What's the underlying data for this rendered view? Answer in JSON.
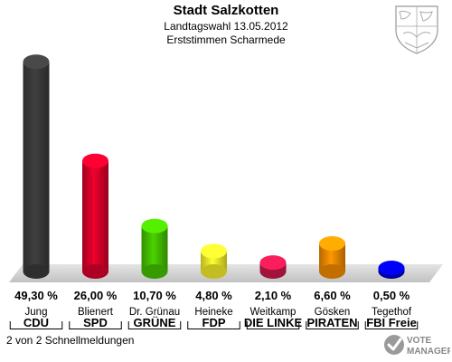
{
  "header": {
    "title": "Stadt Salzkotten",
    "subtitle": "Landtagswahl 13.05.2012",
    "subtitle2": "Erststimmen Scharmede"
  },
  "footer": {
    "status": "2 von 2 Schnellmeldungen",
    "logo_line1": "VOTE",
    "logo_line2": "MANAGER"
  },
  "chart_data": {
    "type": "bar",
    "title": "Stadt Salzkotten",
    "categories": [
      "CDU",
      "SPD",
      "GRÜNE",
      "FDP",
      "DIE LINKE",
      "PIRATEN",
      "FBI Freie"
    ],
    "candidates": [
      "Jung",
      "Blienert",
      "Dr. Grünau",
      "Heineke",
      "Weitkamp",
      "Gösken",
      "Tegethof"
    ],
    "values": [
      49.3,
      26.0,
      10.7,
      4.8,
      2.1,
      6.6,
      0.5
    ],
    "value_labels": [
      "49,30 %",
      "26,00 %",
      "10,70 %",
      "4,80 %",
      "2,10 %",
      "6,60 %",
      "0,50 %"
    ],
    "colors": [
      "#3a3a3a",
      "#d8002a",
      "#44c000",
      "#f2ee2a",
      "#c8184a",
      "#f28a00",
      "#0000c8"
    ],
    "ylim": [
      0,
      50
    ],
    "grid": false,
    "legend": "none"
  }
}
